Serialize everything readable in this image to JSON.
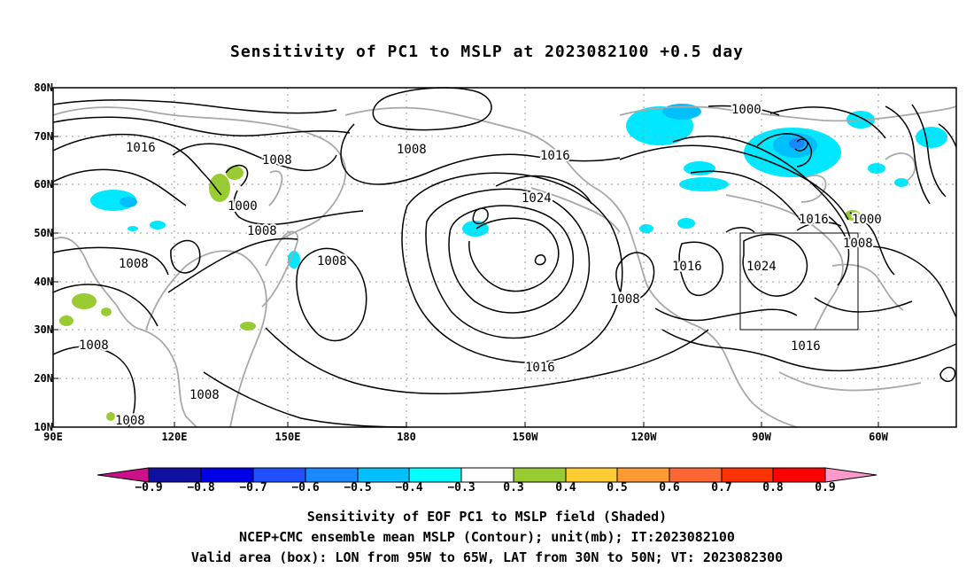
{
  "title": "Sensitivity of PC1 to MSLP at 2023082100 +0.5 day",
  "map": {
    "lat_labels": [
      "80N",
      "70N",
      "60N",
      "50N",
      "40N",
      "30N",
      "20N",
      "10N"
    ],
    "lon_labels": [
      "90E",
      "120E",
      "150E",
      "180",
      "150W",
      "120W",
      "90W",
      "60W"
    ],
    "contour_unit": "mb",
    "contour_levels_shown": [
      1000,
      1008,
      1016,
      1024
    ],
    "contour_labels": [
      "1016",
      "1008",
      "1000",
      "1008",
      "1008",
      "1008",
      "1008",
      "1008",
      "1008",
      "1016",
      "1008",
      "1016",
      "1024",
      "1016",
      "1008",
      "1016",
      "1024",
      "1016",
      "1000",
      "1000",
      "1016",
      "1008"
    ],
    "valid_box": {
      "lon_from": "95W",
      "lon_to": "65W",
      "lat_from": "30N",
      "lat_to": "50N"
    },
    "colors": {
      "contour": "#000000",
      "coastline": "#a8a8a8",
      "grid": "#9a9a9a"
    }
  },
  "colorbar": {
    "labels": [
      "−0.9",
      "−0.8",
      "−0.7",
      "−0.6",
      "−0.5",
      "−0.4",
      "−0.3",
      "0.3",
      "0.4",
      "0.5",
      "0.6",
      "0.7",
      "0.8",
      "0.9"
    ],
    "colors": [
      "#1010a0",
      "#0000e6",
      "#2050ff",
      "#1a88ff",
      "#00bfff",
      "#00ffff",
      "#ffffff",
      "#99cc33",
      "#ffcc33",
      "#ff9933",
      "#ff6633",
      "#ff3300",
      "#ff0000"
    ],
    "low_end_color": "#cc1188",
    "high_end_color": "#ff99cc"
  },
  "captions": [
    "Sensitivity of EOF PC1 to MSLP field (Shaded)",
    "NCEP+CMC ensemble mean MSLP (Contour); unit(mb); IT:2023082100",
    "Valid area (box): LON from 95W to 65W, LAT from 30N to 50N; VT: 2023082300"
  ]
}
